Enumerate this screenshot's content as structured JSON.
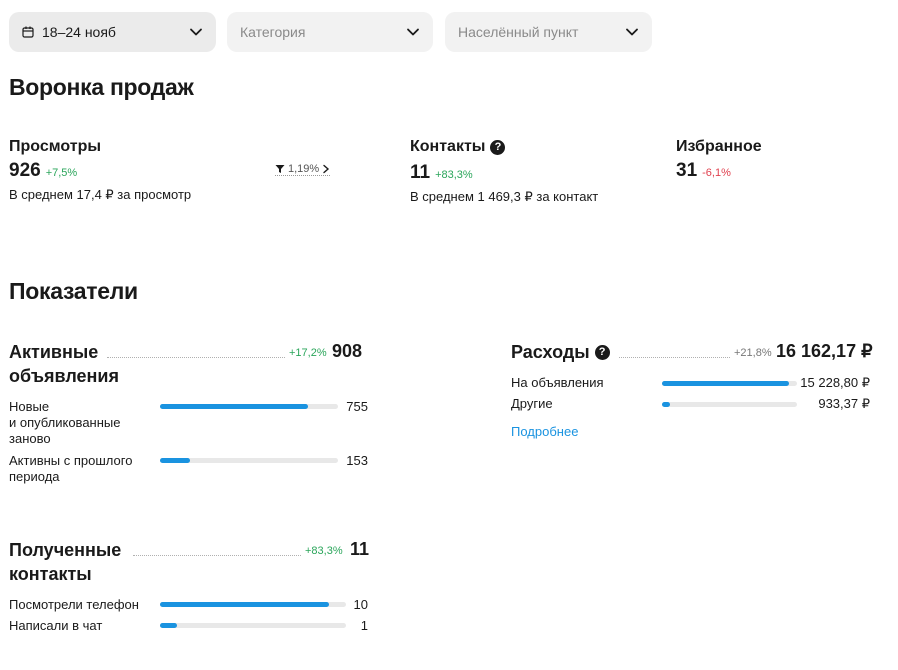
{
  "filters": {
    "period": "18–24 нояб",
    "category_placeholder": "Категория",
    "location_placeholder": "Населённый пункт"
  },
  "funnel": {
    "title": "Воронка продаж",
    "views": {
      "label": "Просмотры",
      "value": "926",
      "change": "+7,5%",
      "sub": "В среднем 17,4 ₽ за просмотр",
      "conversion": "1,19%"
    },
    "contacts": {
      "label": "Контакты",
      "value": "11",
      "change": "+83,3%",
      "sub": "В среднем 1 469,3 ₽ за контакт"
    },
    "favorites": {
      "label": "Избранное",
      "value": "31",
      "change": "-6,1%"
    }
  },
  "indicators": {
    "title": "Показатели",
    "active_listings": {
      "title_line1": "Активные",
      "title_line2": "объявления",
      "change": "+17,2%",
      "total": "908",
      "rows": [
        {
          "label_lines": [
            "Новые",
            "и опубликованные",
            "заново"
          ],
          "value": "755",
          "fraction": 0.832
        },
        {
          "label_lines": [
            "Активны с прошлого",
            "периода"
          ],
          "value": "153",
          "fraction": 0.168
        }
      ]
    },
    "expenses": {
      "title": "Расходы",
      "change": "+21,8%",
      "total": "16 162,17 ₽",
      "rows": [
        {
          "label": "На объявления",
          "value": "15 228,80 ₽",
          "fraction": 0.942
        },
        {
          "label": "Другие",
          "value": "933,37 ₽",
          "fraction": 0.058
        }
      ],
      "details_link": "Подробнее"
    },
    "received_contacts": {
      "title_line1": "Полученные",
      "title_line2": "контакты",
      "change": "+83,3%",
      "total": "11",
      "rows": [
        {
          "label": "Посмотрели телефон",
          "value": "10",
          "fraction": 0.909
        },
        {
          "label": "Написали в чат",
          "value": "1",
          "fraction": 0.091
        }
      ]
    }
  },
  "colors": {
    "accent": "#1a93e0",
    "positive": "#2aa55a",
    "negative": "#e0414f",
    "track": "#e8e8e8"
  }
}
